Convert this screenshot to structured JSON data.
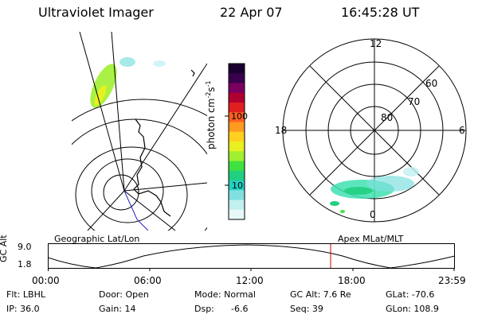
{
  "header": {
    "instrument": "Ultraviolet Imager",
    "date": "22 Apr 07",
    "time": "16:45:28 UT"
  },
  "colorbar": {
    "unit": "photon cm",
    "unit_exp1": "-2",
    "unit_mid": "s",
    "unit_exp2": "-1",
    "ticks": [
      "100",
      "10"
    ],
    "colors": [
      "#1a0030",
      "#3a0050",
      "#7a0060",
      "#b00030",
      "#e02020",
      "#ff6020",
      "#ff9a20",
      "#ffd020",
      "#e8f020",
      "#a0f030",
      "#40e040",
      "#20d080",
      "#20d0c0",
      "#80e0e0",
      "#c0f0f0",
      "#e8f8f8"
    ]
  },
  "polar_plot": {
    "mlt_labels": {
      "top": "12",
      "left": "18",
      "right": "6",
      "bottom": "0"
    },
    "lat_labels": [
      "60",
      "70",
      "80"
    ]
  },
  "timeline": {
    "y_label": "GC Alt",
    "y_ticks": [
      "9.0",
      "1.8"
    ],
    "left_label": "Geographic Lat/Lon",
    "right_label": "Apex MLat/MLT",
    "x_ticks": [
      "00:00",
      "06:00",
      "12:00",
      "18:00",
      "23:59"
    ],
    "marker_color": "#cc0000"
  },
  "status": {
    "flt": "Flt: LBHL",
    "door": "Door: Open",
    "mode": "Mode: Normal",
    "gc_alt": "GC Alt: 7.6 Re",
    "glat": "GLat: -70.6",
    "ip": "IP: 36.0",
    "gain": "Gain: 14",
    "dsp": "Dsp:",
    "dsp_val": "-6.6",
    "seq": "Seq: 39",
    "glon": "GLon: 108.9"
  }
}
